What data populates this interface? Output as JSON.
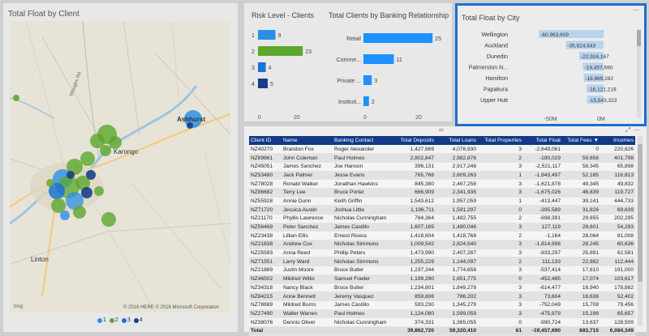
{
  "map": {
    "title": "Total Float by Client",
    "labels": [
      {
        "text": "Ashhurst",
        "kind": "town"
      },
      {
        "text": "Karongo",
        "kind": "town"
      },
      {
        "text": "Linton",
        "kind": "town"
      },
      {
        "text": "Waughs Rd",
        "kind": "road"
      }
    ],
    "credit": "© 2016 HERE   © 2016 Microsoft Corporation",
    "bing": "bing",
    "legend": [
      {
        "label": "1",
        "color": "#2b8fe8"
      },
      {
        "label": "2",
        "color": "#5ba82c"
      },
      {
        "label": "3",
        "color": "#1a73d6"
      },
      {
        "label": "4",
        "color": "#173f8a"
      }
    ]
  },
  "risk_chart": {
    "title": "Risk Level - Clients",
    "axis_ticks": [
      "0",
      "20"
    ]
  },
  "bank_chart": {
    "title": "Total Clients by Banking Relationship",
    "axis_ticks": [
      "0",
      "20"
    ]
  },
  "city_chart": {
    "title": "Total Float by City",
    "axis_ticks": [
      "-50M",
      "0M"
    ]
  },
  "chart_data": [
    {
      "type": "bar",
      "title": "Risk Level - Clients",
      "categories": [
        "1",
        "2",
        "3",
        "4"
      ],
      "values": [
        9,
        23,
        4,
        5
      ],
      "colors": [
        "#2b8fe8",
        "#5ba82c",
        "#1a73d6",
        "#173f8a"
      ],
      "xlim": [
        0,
        25
      ]
    },
    {
      "type": "bar",
      "title": "Total Clients by Banking Relationship",
      "categories": [
        "Retail",
        "Comme...",
        "Private ...",
        "Instituti..."
      ],
      "values": [
        25,
        11,
        3,
        2
      ],
      "color": "#1e90ff",
      "xlim": [
        0,
        27
      ]
    },
    {
      "type": "bar",
      "title": "Total Float by City",
      "categories": [
        "Wellington",
        "Auckland",
        "Dunedin",
        "Palmerston N...",
        "Hamilton",
        "Papakura",
        "Upper Hutt"
      ],
      "values": [
        -60963609,
        -35624643,
        -22924167,
        -19457690,
        -18869282,
        -16121219,
        -15543323
      ],
      "labels": [
        "-60,963,609",
        "-35,624,643",
        "-22,924,167",
        "-19,457,690",
        "-18,869,282",
        "-16,121,219",
        "-15,543,323"
      ],
      "color": "#b9d3ee",
      "xlim": [
        -65000000,
        0
      ]
    }
  ],
  "table": {
    "columns": [
      "Client ID",
      "Name",
      "Banking Contact",
      "Total Deposits",
      "Total Loans",
      "Total Properties",
      "Total Float",
      "Total Fees ▼",
      "Incomes"
    ],
    "rows": [
      [
        "NZ40270",
        "Brandon Fox",
        "Roger Alexander",
        "1,427,869",
        "4,076,930",
        "3",
        "-2,649,061",
        "0",
        "220,826"
      ],
      [
        "NZ89861",
        "John Coleman",
        "Paul Holmes",
        "2,802,847",
        "2,982,876",
        "2",
        "-180,029",
        "59,658",
        "401,798"
      ],
      [
        "NZ45051",
        "James Sanchez",
        "Joe Hanson",
        "396,131",
        "2,917,248",
        "3",
        "-2,521,117",
        "58,345",
        "65,898"
      ],
      [
        "NZ53480",
        "Jack Palmer",
        "Jesse Evans",
        "765,766",
        "2,609,263",
        "1",
        "-1,843,497",
        "52,185",
        "116,813"
      ],
      [
        "NZ78028",
        "Ronald Walker",
        "Jonathan Hawkins",
        "845,380",
        "2,467,258",
        "3",
        "-1,621,878",
        "49,345",
        "49,832"
      ],
      [
        "NZ86682",
        "Terry Lee",
        "Bruce Porter",
        "666,909",
        "2,341,935",
        "3",
        "-1,675,026",
        "46,839",
        "119,727"
      ],
      [
        "NZ55928",
        "Annie Dunn",
        "Keith Griffin",
        "1,543,612",
        "1,957,059",
        "1",
        "-413,447",
        "39,141",
        "444,733"
      ],
      [
        "NZ71720",
        "Jessica Austin",
        "Joshua Little",
        "1,196,711",
        "1,591,297",
        "0",
        "-395,589",
        "31,826",
        "69,639"
      ],
      [
        "NZ21170",
        "Phyllis Lawrence",
        "Nicholas Cunningham",
        "784,364",
        "1,482,755",
        "2",
        "-698,391",
        "29,655",
        "202,295"
      ],
      [
        "NZ56469",
        "Peter Sanchez",
        "James Castillo",
        "1,607,165",
        "1,480,046",
        "3",
        "127,119",
        "29,601",
        "54,293"
      ],
      [
        "NZ23438",
        "Lillian Ellis",
        "Ernest Rivera",
        "1,418,604",
        "1,418,768",
        "2",
        "-1,164",
        "28,064",
        "81,008"
      ],
      [
        "NZ21838",
        "Andrew Cox",
        "Nicholas Simmons",
        "1,009,542",
        "2,824,540",
        "3",
        "-1,814,998",
        "28,245",
        "60,636"
      ],
      [
        "NZ25593",
        "Anna Reed",
        "Phillip Peters",
        "1,473,990",
        "2,407,287",
        "3",
        "-933,297",
        "25,891",
        "62,581"
      ],
      [
        "NZ71551",
        "Larry Ward",
        "Nicholas Simmons",
        "1,255,229",
        "1,144,097",
        "2",
        "111,133",
        "22,882",
        "112,444"
      ],
      [
        "NZ21889",
        "Justin Moore",
        "Bruce Butler",
        "1,237,244",
        "1,774,658",
        "3",
        "-537,414",
        "17,610",
        "191,000"
      ],
      [
        "NZ46502",
        "Mildred Willis",
        "Samuel Fowler",
        "1,199,290",
        "1,651,775",
        "0",
        "-452,485",
        "17,074",
        "103,617"
      ],
      [
        "NZ34318",
        "Nancy Black",
        "Bruce Butler",
        "1,234,801",
        "1,849,278",
        "3",
        "-614,477",
        "16,940",
        "178,882"
      ],
      [
        "NZ84215",
        "Anne Bennett",
        "Jeremy Vasquez",
        "859,806",
        "786,202",
        "3",
        "73,604",
        "16,638",
        "52,402"
      ],
      [
        "NZ78689",
        "Mildred Burns",
        "James Castillo",
        "593,230",
        "1,345,279",
        "3",
        "-752,049",
        "15,708",
        "79,456"
      ],
      [
        "NZ27490",
        "Walter Warren",
        "Paul Holmes",
        "1,124,080",
        "1,599,059",
        "3",
        "-475,979",
        "15,196",
        "65,657"
      ],
      [
        "NZ38076",
        "Dennis Oliver",
        "Nicholas Cunningham",
        "374,331",
        "1,365,055",
        "0",
        "-990,724",
        "13,637",
        "128,509"
      ]
    ],
    "total": [
      "Total",
      "",
      "",
      "39,862,720",
      "59,320,410",
      "61",
      "-19,457,690",
      "883,715",
      "6,084,349"
    ]
  }
}
